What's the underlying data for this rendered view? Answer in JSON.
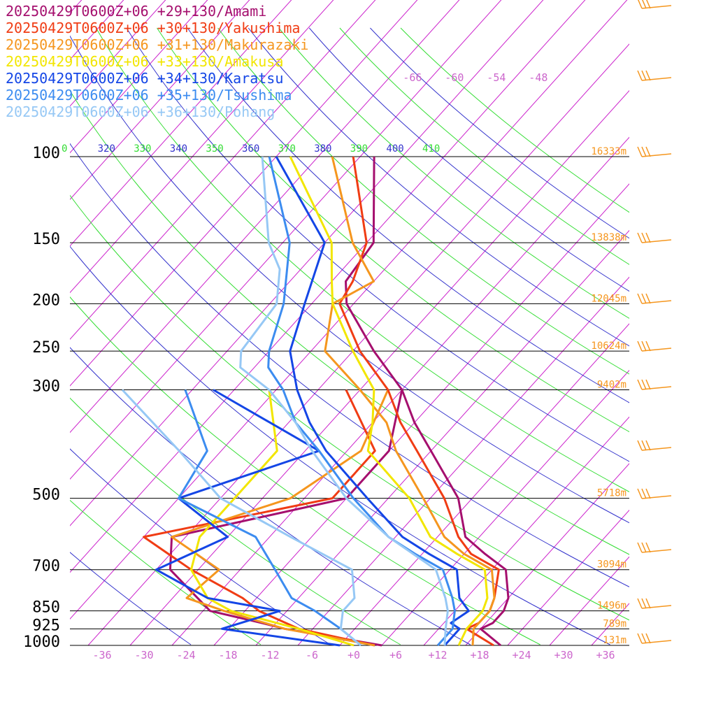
{
  "chart_data": {
    "type": "line",
    "chart_kind": "skew-T log-P diagram",
    "legend": [
      {
        "label": "20250429T0600Z+06 +29+130/Amami",
        "color": "#a50f6e"
      },
      {
        "label": "20250429T0600Z+06 +30+130/Yakushima",
        "color": "#f03c14"
      },
      {
        "label": "20250429T0600Z+06 +31+130/Makurazaki",
        "color": "#f5961e"
      },
      {
        "label": "20250429T0600Z+06 +33+130/Amakusa",
        "color": "#f2e600"
      },
      {
        "label": "20250429T0600Z+06 +34+130/Karatsu",
        "color": "#1446e6"
      },
      {
        "label": "20250429T0600Z+06 +35+130/Tsushima",
        "color": "#3c8cf0"
      },
      {
        "label": "20250429T0600Z+06 +36+130/Pohang",
        "color": "#96c8f5"
      }
    ],
    "pressure_levels": [
      {
        "p": 100,
        "label": "100",
        "height": "16333m"
      },
      {
        "p": 150,
        "label": "150",
        "height": "13838m"
      },
      {
        "p": 200,
        "label": "200",
        "height": "12045m"
      },
      {
        "p": 250,
        "label": "250",
        "height": "10624m"
      },
      {
        "p": 300,
        "label": "300",
        "height": "9402m"
      },
      {
        "p": 500,
        "label": "500",
        "height": "5718m"
      },
      {
        "p": 700,
        "label": "700",
        "height": "3094m"
      },
      {
        "p": 850,
        "label": "850",
        "height": "1496m"
      },
      {
        "p": 925,
        "label": "925",
        "height": "789m"
      },
      {
        "p": 1000,
        "label": "1000",
        "height": "131m"
      }
    ],
    "x_ticks": [
      "-36",
      "-30",
      "-24",
      "-18",
      "-12",
      "-6",
      "+0",
      "+6",
      "+12",
      "+18",
      "+24",
      "+30",
      "+36"
    ],
    "x_tick_values": [
      -36,
      -30,
      -24,
      -18,
      -12,
      -6,
      0,
      6,
      12,
      18,
      24,
      30,
      36
    ],
    "isotherm_labels_top": [
      "-66",
      "-60",
      "-54",
      "-48"
    ],
    "theta_labels": [
      {
        "text": "0",
        "color": "#33dd33"
      },
      {
        "text": "320",
        "color": "#3333cc"
      },
      {
        "text": "330",
        "color": "#33dd33"
      },
      {
        "text": "340",
        "color": "#3333cc"
      },
      {
        "text": "350",
        "color": "#33dd33"
      },
      {
        "text": "360",
        "color": "#3333cc"
      },
      {
        "text": "370",
        "color": "#33dd33"
      },
      {
        "text": "380",
        "color": "#3333cc"
      },
      {
        "text": "390",
        "color": "#33dd33"
      },
      {
        "text": "400",
        "color": "#3333cc"
      },
      {
        "text": "410",
        "color": "#33dd33"
      }
    ],
    "colors": {
      "isotherm": "#cc22cc",
      "dry_adiabat_green": "#33dd33",
      "dry_adiabat_blue": "#3333cc",
      "pressure_line": "#000000",
      "height_label": "#f5961e",
      "tick_label": "#cc66cc",
      "wind_barb": "#f5961e"
    },
    "temperature_profiles": [
      {
        "name": "Amami",
        "p": [
          1000,
          925,
          900,
          850,
          800,
          700,
          650,
          600,
          500,
          400,
          350,
          300,
          250,
          200,
          180,
          150,
          100
        ],
        "t": [
          21,
          16,
          17,
          17,
          16,
          12,
          7,
          2,
          -4,
          -14,
          -20,
          -26,
          -35,
          -45,
          -48,
          -49,
          -60
        ]
      },
      {
        "name": "Yakushima",
        "p": [
          1000,
          925,
          900,
          850,
          800,
          700,
          650,
          600,
          500,
          400,
          350,
          300,
          250,
          200,
          180,
          150,
          100
        ],
        "t": [
          20,
          14,
          15,
          15,
          14,
          11,
          5,
          1,
          -6,
          -16,
          -22,
          -28,
          -37,
          -46,
          -47,
          -50,
          -63
        ]
      },
      {
        "name": "Makurazaki",
        "p": [
          1000,
          925,
          850,
          800,
          700,
          650,
          600,
          500,
          400,
          350,
          300,
          250,
          200,
          180,
          150,
          100
        ],
        "t": [
          17,
          15,
          15,
          14,
          10,
          4,
          -1,
          -9,
          -19,
          -24,
          -32,
          -42,
          -47,
          -44,
          -52,
          -66
        ]
      },
      {
        "name": "Amakusa",
        "p": [
          1000,
          925,
          850,
          800,
          700,
          650,
          600,
          500,
          400,
          350,
          300,
          250,
          200,
          180,
          150,
          100
        ],
        "t": [
          15,
          14,
          14,
          13,
          9,
          3,
          -3,
          -11,
          -23,
          -26,
          -30,
          -38,
          -47,
          -50,
          -55,
          -72
        ]
      },
      {
        "name": "Karatsu",
        "p": [
          1000,
          925,
          900,
          850,
          800,
          700,
          650,
          600,
          500,
          400,
          350,
          300,
          250,
          200,
          150,
          100
        ],
        "t": [
          13,
          13,
          11,
          12,
          9,
          5,
          -1,
          -7,
          -17,
          -29,
          -35,
          -41,
          -47,
          -51,
          -56,
          -74
        ]
      },
      {
        "name": "Tsushima",
        "p": [
          1000,
          925,
          850,
          800,
          700,
          650,
          600,
          500,
          400,
          350,
          300,
          270,
          250,
          200,
          150,
          100
        ],
        "t": [
          12,
          12,
          10,
          8,
          3,
          -3,
          -9,
          -19,
          -30,
          -37,
          -43,
          -48,
          -50,
          -54,
          -61,
          -75
        ]
      },
      {
        "name": "Pohang",
        "p": [
          1000,
          925,
          850,
          800,
          700,
          600,
          500,
          400,
          350,
          300,
          270,
          250,
          200,
          170,
          150,
          100
        ],
        "t": [
          13,
          11,
          9,
          7,
          2,
          -9,
          -20,
          -31,
          -37,
          -45,
          -52,
          -54,
          -55,
          -59,
          -64,
          -76
        ]
      }
    ],
    "dewpoint_profiles": [
      {
        "name": "Amami",
        "p": [
          1000,
          925,
          900,
          850,
          700,
          600,
          500,
          400,
          300
        ],
        "dp": [
          4,
          -12,
          -16,
          -25,
          -36,
          -40,
          -20,
          -20,
          -26
        ]
      },
      {
        "name": "Yakushima",
        "p": [
          1000,
          925,
          850,
          800,
          700,
          600,
          500,
          400,
          300
        ],
        "dp": [
          3,
          -10,
          -18,
          -22,
          -33,
          -44,
          -22,
          -22,
          -34
        ]
      },
      {
        "name": "Makurazaki",
        "p": [
          1000,
          925,
          850,
          800,
          700,
          600,
          500,
          400,
          300
        ],
        "dp": [
          3,
          -12,
          -23,
          -30,
          -29,
          -40,
          -28,
          -24,
          -28
        ]
      },
      {
        "name": "Amakusa",
        "p": [
          1000,
          925,
          850,
          800,
          700,
          600,
          500,
          400,
          300
        ],
        "dp": [
          0,
          -10,
          -22,
          -27,
          -33,
          -36,
          -36,
          -36,
          -45
        ]
      },
      {
        "name": "Karatsu",
        "p": [
          1000,
          925,
          850,
          800,
          700,
          600,
          500,
          400,
          300
        ],
        "dp": [
          -2,
          -21,
          -15,
          -27,
          -38,
          -32,
          -44,
          -30,
          -53
        ]
      },
      {
        "name": "Tsushima",
        "p": [
          1000,
          925,
          850,
          800,
          700,
          600,
          500,
          400,
          300
        ],
        "dp": [
          1,
          -4,
          -10,
          -15,
          -21,
          -28,
          -44,
          -46,
          -57
        ]
      },
      {
        "name": "Pohang",
        "p": [
          1000,
          925,
          850,
          800,
          700,
          600,
          500,
          400,
          300
        ],
        "dp": [
          1,
          -4,
          -6,
          -6,
          -10,
          -23,
          -38,
          -50,
          -66
        ]
      }
    ],
    "xlim": [
      -40,
      40
    ],
    "ylim": [
      1000,
      100
    ],
    "grid": true,
    "legend_position": "top-left"
  }
}
